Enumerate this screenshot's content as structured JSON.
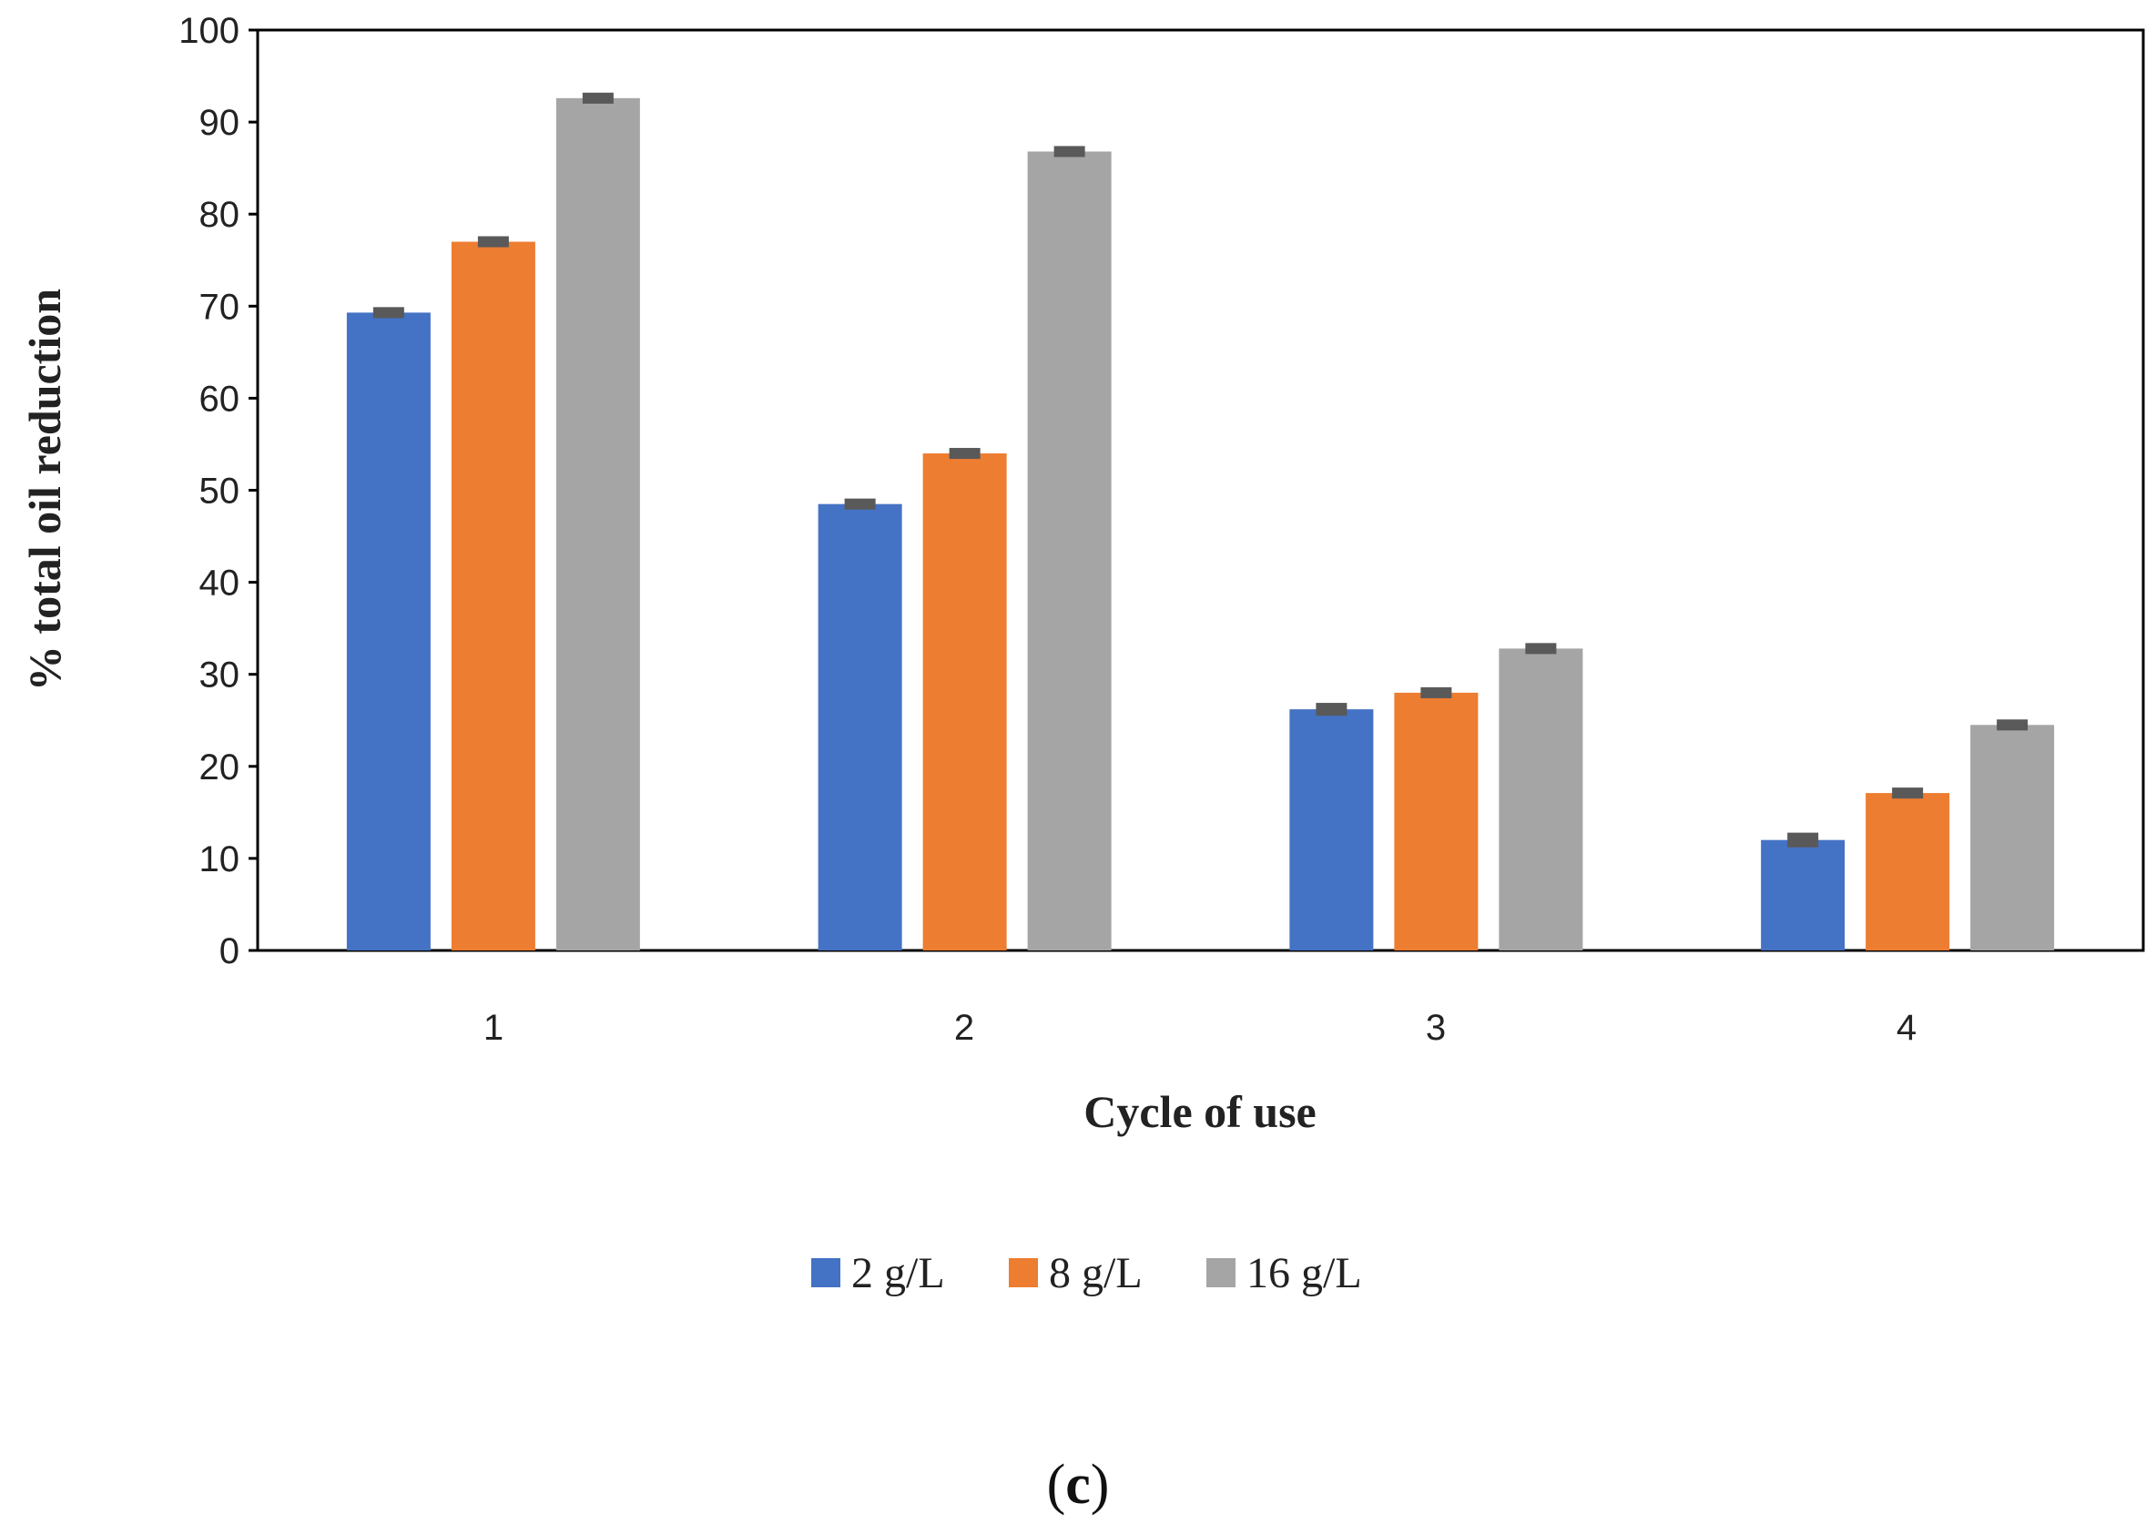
{
  "chart_data": {
    "type": "bar",
    "title": "",
    "xlabel": "Cycle of use",
    "ylabel": "% total oil reduction",
    "categories": [
      "1",
      "2",
      "3",
      "4"
    ],
    "series": [
      {
        "name": "2 g/L",
        "color": "#4472C4",
        "values": [
          69.3,
          48.5,
          26.2,
          12.0
        ],
        "errors": [
          0.3,
          0.3,
          0.4,
          0.5
        ]
      },
      {
        "name": "8 g/L",
        "color": "#ED7D31",
        "values": [
          77.0,
          54.0,
          28.0,
          17.1
        ],
        "errors": [
          0.3,
          0.3,
          0.3,
          0.3
        ]
      },
      {
        "name": "16 g/L",
        "color": "#A5A5A5",
        "values": [
          92.6,
          86.8,
          32.8,
          24.5
        ],
        "errors": [
          0.3,
          0.3,
          0.3,
          0.3
        ]
      }
    ],
    "yticks": [
      "0",
      "10",
      "20",
      "30",
      "40",
      "50",
      "60",
      "70",
      "80",
      "90",
      "100"
    ],
    "ylim": [
      0,
      100
    ],
    "grid": false,
    "legend": "bottom-center",
    "error_bar_color": "#595959"
  },
  "panel_label": {
    "open": "(",
    "letter": "c",
    "close": ")"
  }
}
